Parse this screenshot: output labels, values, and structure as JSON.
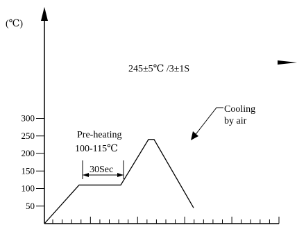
{
  "chart_data": {
    "type": "line",
    "unit_label": "(℃)",
    "y_ticks": [
      "50",
      "100",
      "150",
      "200",
      "250",
      "300"
    ],
    "ylim": [
      0,
      320
    ],
    "x_minor_tick_count": 25,
    "grid": false,
    "series": [
      {
        "points": [
          {
            "x": 0,
            "y": 0
          },
          {
            "x": 50,
            "y": 110
          },
          {
            "x": 110,
            "y": 110
          },
          {
            "x": 150,
            "y": 240
          },
          {
            "x": 158,
            "y": 240
          },
          {
            "x": 215,
            "y": 45
          }
        ]
      }
    ],
    "annotations": {
      "peak": "245±5℃ /3±1S",
      "preheat_line1": "Pre-heating",
      "preheat_line2": "100-115℃",
      "duration": "30Sec",
      "cooling_line1": "Cooling",
      "cooling_line2": "by air"
    },
    "line_color": "#000000"
  }
}
